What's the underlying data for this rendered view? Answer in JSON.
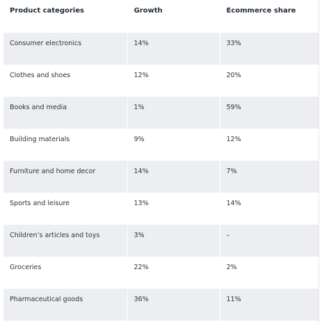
{
  "table": {
    "headers": [
      "Product categories",
      "Growth",
      "Ecommerce share"
    ],
    "rows": [
      [
        "Consumer electronics",
        "14%",
        "33%"
      ],
      [
        "Clothes and shoes",
        "12%",
        "20%"
      ],
      [
        "Books and media",
        "1%",
        "59%"
      ],
      [
        "Building materials",
        "9%",
        "12%"
      ],
      [
        "Furniture and home decor",
        "14%",
        "7%"
      ],
      [
        "Sports and leisure",
        "13%",
        "14%"
      ],
      [
        "Children’s articles and toys",
        "3%",
        "–"
      ],
      [
        "Groceries",
        "22%",
        "2%"
      ],
      [
        "Pharmaceutical goods",
        "36%",
        "11%"
      ]
    ]
  },
  "colors": {
    "shaded_row": "#eceef1",
    "text": "#2b3541"
  }
}
